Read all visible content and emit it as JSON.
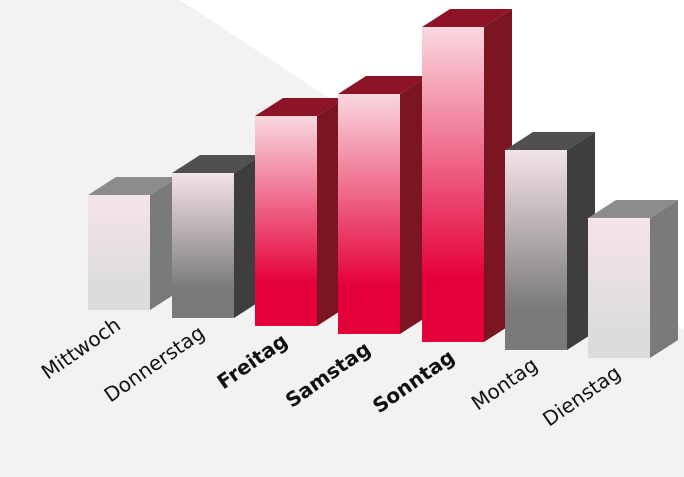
{
  "chart_data": {
    "type": "bar",
    "categories": [
      "Mittwoch",
      "Donnerstag",
      "Freitag",
      "Samstag",
      "Sonntag",
      "Montag",
      "Dienstag"
    ],
    "values": [
      23,
      29,
      42,
      48,
      63,
      40,
      28
    ],
    "highlighted": [
      "Freitag",
      "Samstag",
      "Sonntag"
    ],
    "title": "",
    "xlabel": "",
    "ylabel": "",
    "grid": false,
    "legend": "none",
    "colors": {
      "highlight_front_top": "#f9d8df",
      "highlight_front_bottom": "#e4003a",
      "highlight_side": "#7c1522",
      "highlight_top": "#8d1426",
      "light_front_top": "#f5e4ea",
      "light_front_bottom": "#dcdcdc",
      "light_side": "#7a7a7a",
      "light_top": "#8c8c8c",
      "dark_front_top": "#f3e3e9",
      "dark_front_bottom": "#7a7a7a",
      "dark_side": "#3e3e3e",
      "dark_top": "#505050",
      "backdrop": "#eeeeee"
    }
  }
}
